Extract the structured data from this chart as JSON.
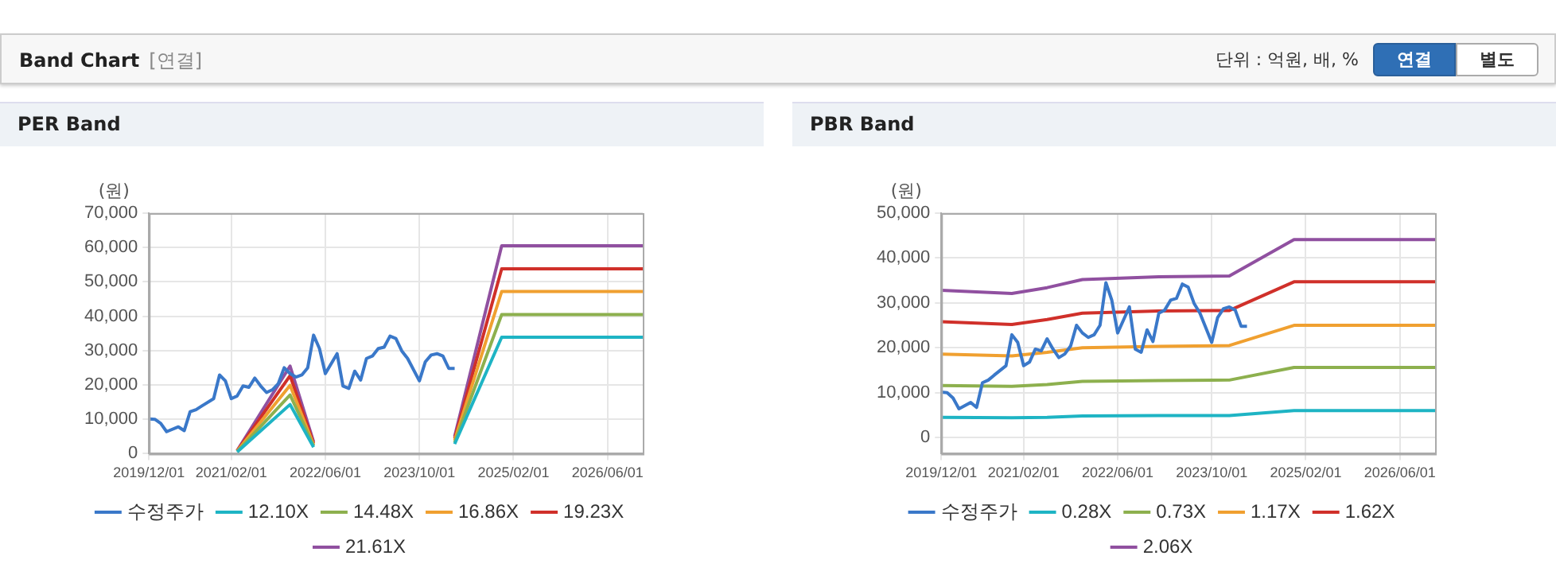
{
  "chart_data": [
    {
      "type": "other",
      "title": "Band Chart",
      "annotations": [
        "[연결]",
        "단위 : 억원, 배, %",
        "연결",
        "별도"
      ]
    },
    {
      "type": "line",
      "title": "PER Band",
      "ylabel": "(원)",
      "grid": true,
      "legend": "bottom",
      "marker": "none",
      "line_style": "solid",
      "xlim": [
        "2019-12",
        "2026-12"
      ],
      "xticks": [
        {
          "value": "2019-12",
          "label": "2019/12/01"
        },
        {
          "value": "2021-02",
          "label": "2021/02/01"
        },
        {
          "value": "2022-06",
          "label": "2022/06/01"
        },
        {
          "value": "2023-10",
          "label": "2023/10/01"
        },
        {
          "value": "2025-02",
          "label": "2025/02/01"
        },
        {
          "value": "2026-06",
          "label": "2026/06/01"
        }
      ],
      "ylim": [
        0,
        70000
      ],
      "yticks": [
        0,
        {
          "value": 10000,
          "label": "10,000"
        },
        {
          "value": 20000,
          "label": "20,000"
        },
        {
          "value": 30000,
          "label": "30,000"
        },
        {
          "value": 40000,
          "label": "40,000"
        },
        {
          "value": 50000,
          "label": "50,000"
        },
        {
          "value": 60000,
          "label": "60,000"
        },
        {
          "value": 70000,
          "label": "70,000"
        }
      ],
      "x": [
        "2019-12",
        "2020-01",
        "2020-02",
        "2020-03",
        "2020-05",
        "2020-06",
        "2020-07",
        "2020-08",
        "2020-09",
        "2020-11",
        "2020-12",
        "2021-01",
        "2021-02",
        "2021-03",
        "2021-04",
        "2021-05",
        "2021-06",
        "2021-07",
        "2021-08",
        "2021-09",
        "2021-10",
        "2021-11",
        "2021-12",
        "2022-01",
        "2022-02",
        "2022-03",
        "2022-04",
        "2022-05",
        "2022-06",
        "2022-07",
        "2022-08",
        "2022-09",
        "2022-10",
        "2022-11",
        "2022-12",
        "2023-01",
        "2023-02",
        "2023-03",
        "2023-04",
        "2023-05",
        "2023-06",
        "2023-07",
        "2023-08",
        "2023-10",
        "2023-11",
        "2023-12",
        "2024-01",
        "2024-02",
        "2024-03",
        "2024-04"
      ],
      "series": [
        {
          "name": "수정주가",
          "color": "#3a78c9",
          "values": [
            10100,
            10000,
            8800,
            6400,
            7800,
            6700,
            12200,
            12800,
            13900,
            16000,
            22900,
            21200,
            16000,
            16800,
            19700,
            19300,
            22000,
            19700,
            17800,
            18600,
            20400,
            25000,
            23300,
            22300,
            22900,
            25000,
            34500,
            30600,
            23300,
            26200,
            29100,
            19700,
            19000,
            24000,
            21400,
            27700,
            28400,
            30600,
            31000,
            34200,
            33500,
            29900,
            27700,
            21200,
            26700,
            28700,
            29100,
            28400,
            24800,
            24800
          ]
        },
        {
          "name": "12.10X",
          "color": "#1eb4c4",
          "x": [
            "2021-03",
            "2021-12",
            "2022-04",
            "2023-01",
            "2024-04",
            "2024-12",
            "2026-12"
          ],
          "values": [
            500,
            14300,
            1900,
            null,
            2800,
            33900,
            33900
          ]
        },
        {
          "name": "14.48X",
          "color": "#8db04e",
          "x": [
            "2021-03",
            "2021-12",
            "2022-04",
            "2023-01",
            "2024-04",
            "2024-12",
            "2026-12"
          ],
          "values": [
            600,
            17100,
            2300,
            null,
            3300,
            40500,
            40500
          ]
        },
        {
          "name": "16.86X",
          "color": "#f0a030",
          "x": [
            "2021-03",
            "2021-12",
            "2022-04",
            "2023-01",
            "2024-04",
            "2024-12",
            "2026-12"
          ],
          "values": [
            700,
            19900,
            2600,
            null,
            3900,
            47200,
            47200
          ]
        },
        {
          "name": "19.23X",
          "color": "#d0302a",
          "x": [
            "2021-03",
            "2021-12",
            "2022-04",
            "2023-01",
            "2024-04",
            "2024-12",
            "2026-12"
          ],
          "values": [
            800,
            22700,
            3000,
            null,
            4400,
            53800,
            53800
          ]
        },
        {
          "name": "21.61X",
          "color": "#9050a0",
          "x": [
            "2021-03",
            "2021-12",
            "2022-04",
            "2023-01",
            "2024-04",
            "2024-12",
            "2026-12"
          ],
          "values": [
            900,
            25500,
            3400,
            null,
            5000,
            60500,
            60500
          ]
        }
      ]
    },
    {
      "type": "line",
      "title": "PBR Band",
      "ylabel": "(원)",
      "grid": true,
      "legend": "bottom",
      "marker": "none",
      "line_style": "solid",
      "xlim": [
        "2019-12",
        "2026-12"
      ],
      "xticks": [
        {
          "value": "2019-12",
          "label": "2019/12/01"
        },
        {
          "value": "2021-02",
          "label": "2021/02/01"
        },
        {
          "value": "2022-06",
          "label": "2022/06/01"
        },
        {
          "value": "2023-10",
          "label": "2023/10/01"
        },
        {
          "value": "2025-02",
          "label": "2025/02/01"
        },
        {
          "value": "2026-06",
          "label": "2026/06/01"
        }
      ],
      "ylim": [
        -3600,
        50000
      ],
      "yticks": [
        0,
        {
          "value": 10000,
          "label": "10,000"
        },
        {
          "value": 20000,
          "label": "20,000"
        },
        {
          "value": 30000,
          "label": "30,000"
        },
        {
          "value": 40000,
          "label": "40,000"
        },
        {
          "value": 50000,
          "label": "50,000"
        }
      ],
      "x": [
        "2019-12",
        "2020-01",
        "2020-02",
        "2020-03",
        "2020-05",
        "2020-06",
        "2020-07",
        "2020-08",
        "2020-09",
        "2020-11",
        "2020-12",
        "2021-01",
        "2021-02",
        "2021-03",
        "2021-04",
        "2021-05",
        "2021-06",
        "2021-07",
        "2021-08",
        "2021-09",
        "2021-10",
        "2021-11",
        "2021-12",
        "2022-01",
        "2022-02",
        "2022-03",
        "2022-04",
        "2022-05",
        "2022-06",
        "2022-07",
        "2022-08",
        "2022-09",
        "2022-10",
        "2022-11",
        "2022-12",
        "2023-01",
        "2023-02",
        "2023-03",
        "2023-04",
        "2023-05",
        "2023-06",
        "2023-07",
        "2023-08",
        "2023-10",
        "2023-11",
        "2023-12",
        "2024-01",
        "2024-02",
        "2024-03",
        "2024-04"
      ],
      "series": [
        {
          "name": "수정주가",
          "color": "#3a78c9",
          "values": [
            10100,
            10000,
            8800,
            6400,
            7800,
            6700,
            12200,
            12800,
            13900,
            16000,
            22900,
            21200,
            16000,
            16800,
            19700,
            19300,
            22000,
            19700,
            17800,
            18600,
            20400,
            25000,
            23300,
            22300,
            22900,
            25000,
            34500,
            30600,
            23300,
            26200,
            29100,
            19700,
            19000,
            24000,
            21400,
            27700,
            28400,
            30600,
            31000,
            34200,
            33500,
            29900,
            27700,
            21200,
            26700,
            28700,
            29100,
            28400,
            24800,
            24800
          ]
        },
        {
          "name": "0.28X",
          "color": "#1eb4c4",
          "x": [
            "2019-12",
            "2020-12",
            "2021-06",
            "2021-12",
            "2023-01",
            "2024-01",
            "2024-12",
            "2026-12"
          ],
          "values": [
            4500,
            4400,
            4500,
            4800,
            4900,
            4900,
            6000,
            6000
          ]
        },
        {
          "name": "0.73X",
          "color": "#8db04e",
          "x": [
            "2019-12",
            "2020-12",
            "2021-06",
            "2021-12",
            "2023-01",
            "2024-01",
            "2024-12",
            "2026-12"
          ],
          "values": [
            11600,
            11400,
            11800,
            12500,
            12700,
            12800,
            15600,
            15600
          ]
        },
        {
          "name": "1.17X",
          "color": "#f0a030",
          "x": [
            "2019-12",
            "2020-12",
            "2021-06",
            "2021-12",
            "2023-01",
            "2024-01",
            "2024-12",
            "2026-12"
          ],
          "values": [
            18600,
            18200,
            19000,
            20000,
            20300,
            20500,
            25000,
            25000
          ]
        },
        {
          "name": "1.62X",
          "color": "#d0302a",
          "x": [
            "2019-12",
            "2020-12",
            "2021-06",
            "2021-12",
            "2023-01",
            "2024-01",
            "2024-12",
            "2026-12"
          ],
          "values": [
            25800,
            25200,
            26300,
            27700,
            28200,
            28300,
            34700,
            34700
          ]
        },
        {
          "name": "2.06X",
          "color": "#9050a0",
          "x": [
            "2019-12",
            "2020-12",
            "2021-06",
            "2021-12",
            "2023-01",
            "2024-01",
            "2024-12",
            "2026-12"
          ],
          "values": [
            32800,
            32100,
            33400,
            35200,
            35800,
            36000,
            44100,
            44100
          ]
        }
      ]
    }
  ]
}
